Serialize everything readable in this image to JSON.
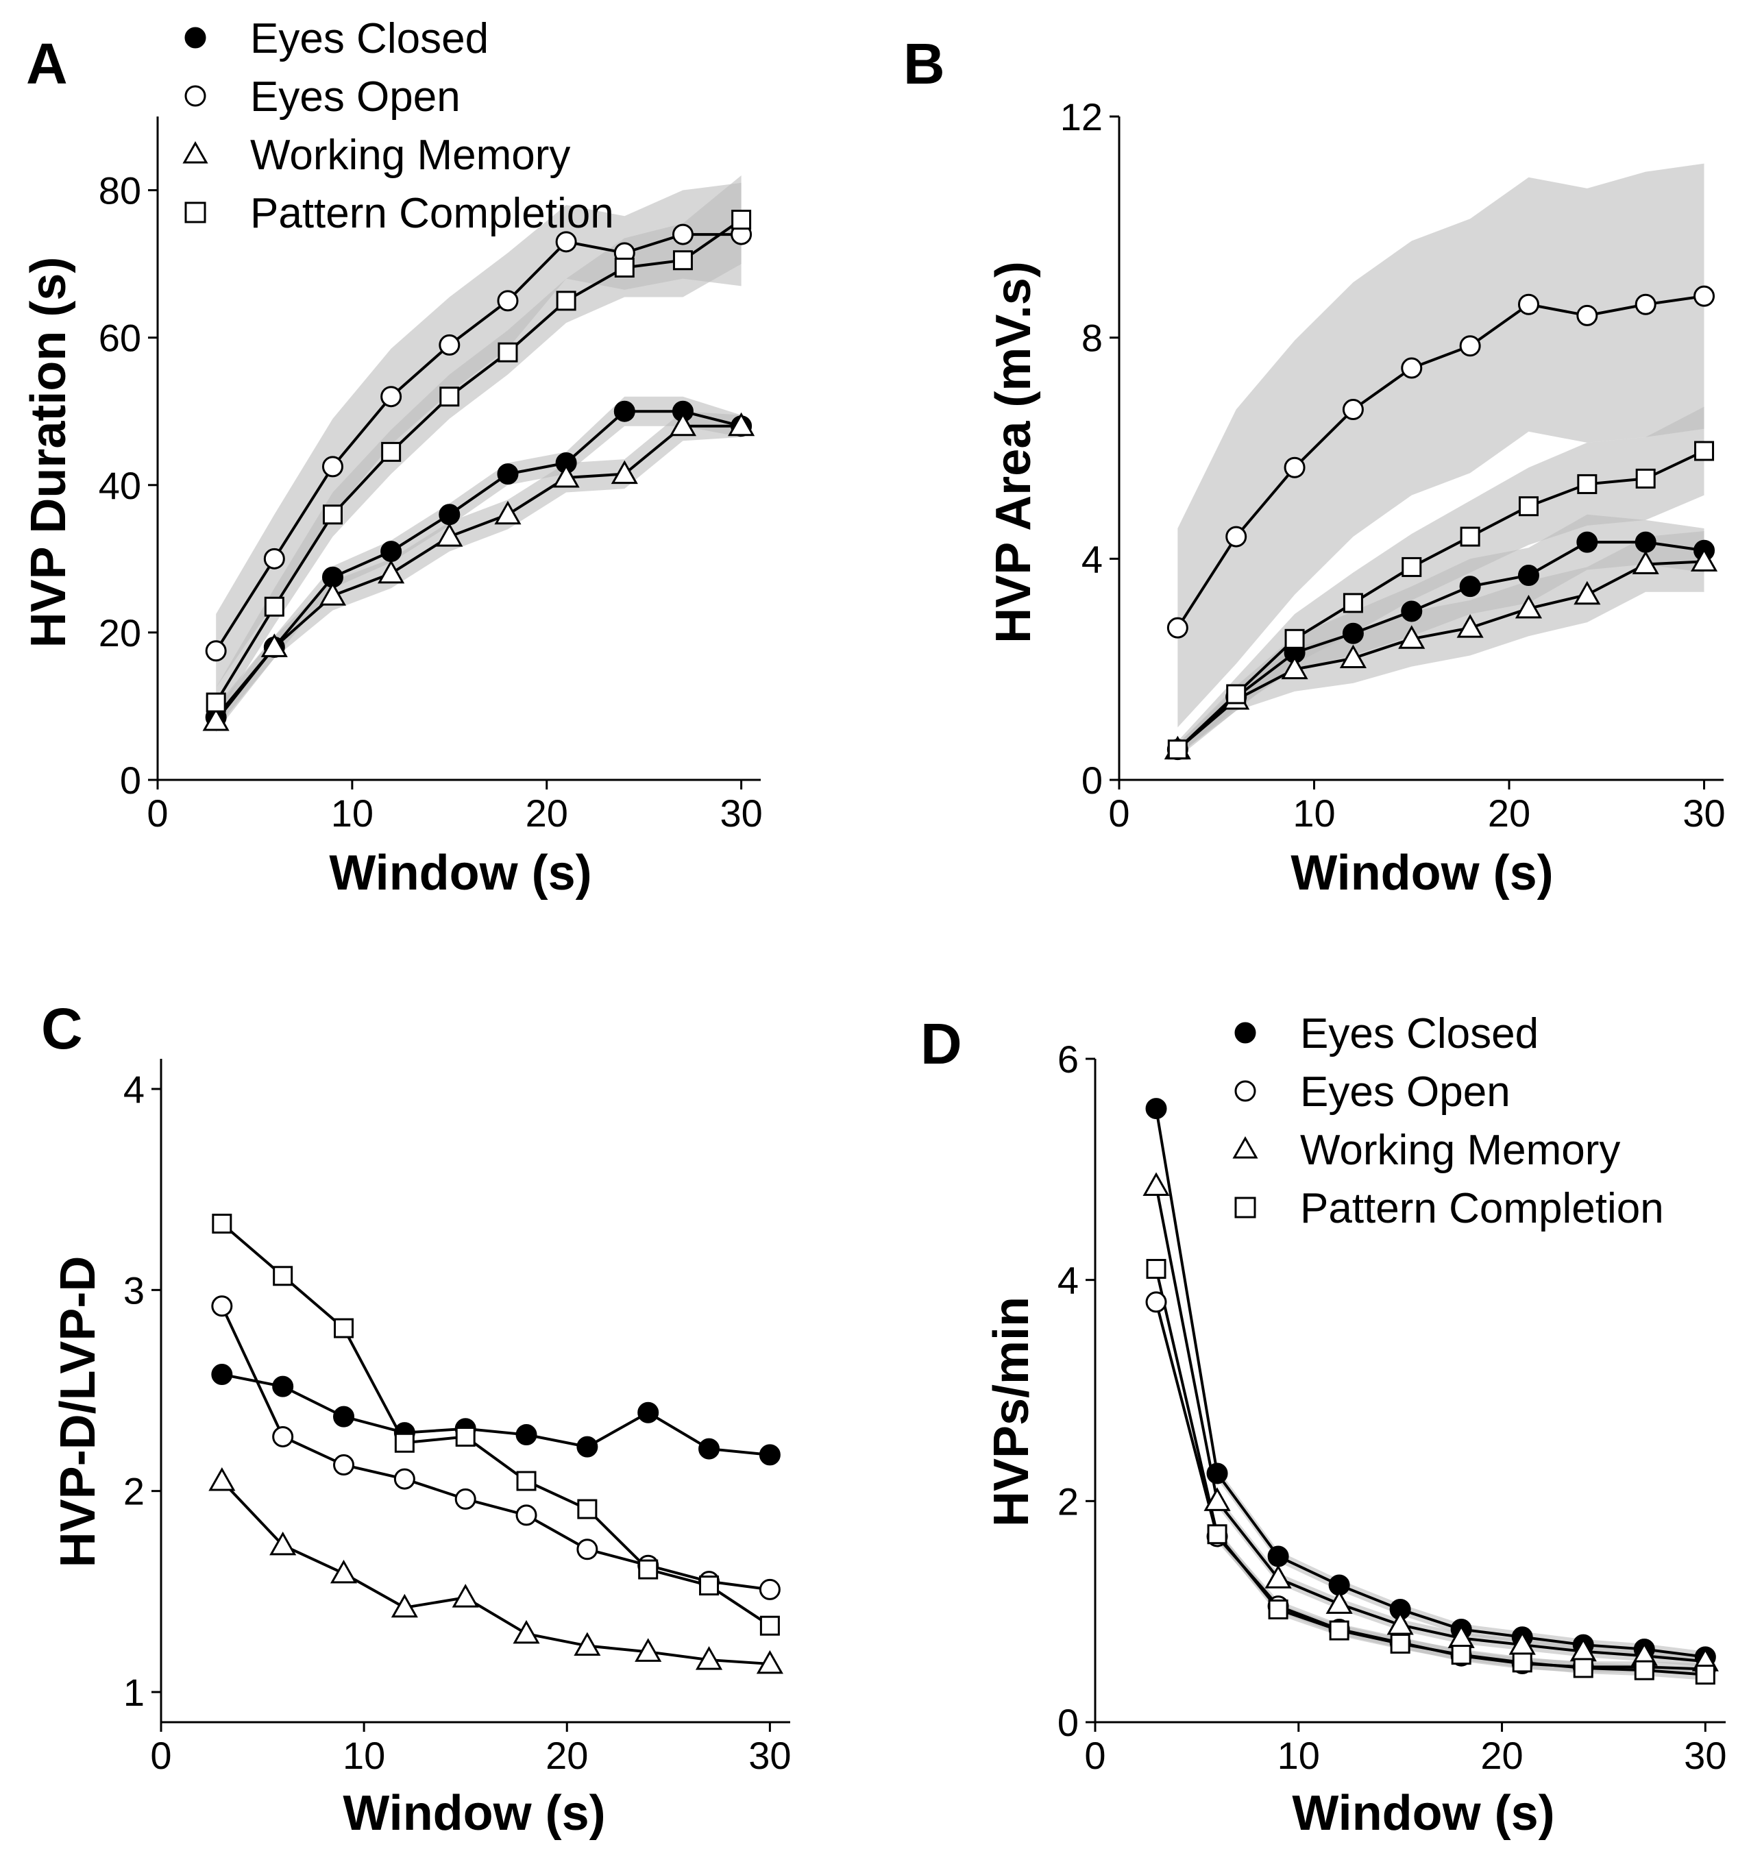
{
  "legend": [
    "Eyes Closed",
    "Eyes Open",
    "Working Memory",
    "Pattern Completion"
  ],
  "chart_data": [
    {
      "panel": "A",
      "type": "line",
      "xlabel": "Window (s)",
      "ylabel": "HVP Duration (s)",
      "xlim": [
        0,
        31
      ],
      "ylim": [
        0,
        90
      ],
      "xticks": [
        "0",
        "10",
        "20",
        "30"
      ],
      "yticks": [
        "0",
        "20",
        "40",
        "60",
        "80"
      ],
      "legend": "top-left",
      "x": [
        3,
        6,
        9,
        12,
        15,
        18,
        21,
        24,
        27,
        30
      ],
      "series": [
        {
          "name": "Eyes Closed",
          "marker": "filled-circle",
          "values": [
            8.5,
            18,
            27.5,
            31,
            36,
            41.5,
            43,
            50,
            50,
            48
          ],
          "band": [
            1.5,
            1.5,
            1.5,
            1.5,
            1.5,
            1.5,
            1.5,
            2,
            2,
            1.5
          ]
        },
        {
          "name": "Eyes Open",
          "marker": "open-circle",
          "values": [
            17.5,
            30,
            42.5,
            52,
            59,
            65,
            73,
            71.5,
            74,
            74
          ],
          "band": [
            5,
            6,
            6.5,
            6.5,
            6.5,
            6.5,
            5,
            5,
            6,
            7
          ]
        },
        {
          "name": "Working Memory",
          "marker": "open-triangle",
          "values": [
            8,
            18,
            25,
            28,
            33,
            36,
            41,
            41.5,
            48,
            48
          ],
          "band": [
            1.5,
            1.5,
            2,
            2,
            2,
            2,
            2,
            2,
            2,
            1.5
          ]
        },
        {
          "name": "Pattern Completion",
          "marker": "open-square",
          "values": [
            10.5,
            23.5,
            36,
            44.5,
            52,
            58,
            65,
            69.5,
            70.5,
            76
          ],
          "band": [
            2,
            2.5,
            3,
            3,
            3,
            3,
            3,
            4,
            5,
            6
          ]
        }
      ]
    },
    {
      "panel": "B",
      "type": "line",
      "xlabel": "Window (s)",
      "ylabel": "HVP Area (mV.s)",
      "xlim": [
        0,
        31
      ],
      "ylim": [
        0,
        12
      ],
      "xticks": [
        "0",
        "10",
        "20",
        "30"
      ],
      "yticks": [
        "0",
        "4",
        "8",
        "12"
      ],
      "x": [
        3,
        6,
        9,
        12,
        15,
        18,
        21,
        24,
        27,
        30
      ],
      "series": [
        {
          "name": "Eyes Closed",
          "marker": "filled-circle",
          "values": [
            0.55,
            1.5,
            2.3,
            2.65,
            3.05,
            3.5,
            3.7,
            4.3,
            4.3,
            4.15
          ],
          "band": [
            0.1,
            0.2,
            0.3,
            0.4,
            0.45,
            0.5,
            0.5,
            0.5,
            0.4,
            0.4
          ]
        },
        {
          "name": "Eyes Open",
          "marker": "open-circle",
          "values": [
            2.75,
            4.4,
            5.65,
            6.7,
            7.45,
            7.85,
            8.6,
            8.4,
            8.6,
            8.75
          ],
          "band": [
            1.8,
            2.3,
            2.3,
            2.3,
            2.3,
            2.3,
            2.3,
            2.3,
            2.4,
            2.4
          ]
        },
        {
          "name": "Working Memory",
          "marker": "open-triangle",
          "values": [
            0.55,
            1.45,
            2.0,
            2.2,
            2.55,
            2.75,
            3.1,
            3.35,
            3.9,
            3.95
          ],
          "band": [
            0.1,
            0.2,
            0.4,
            0.45,
            0.5,
            0.5,
            0.5,
            0.5,
            0.5,
            0.55
          ]
        },
        {
          "name": "Pattern Completion",
          "marker": "open-square",
          "values": [
            0.55,
            1.55,
            2.55,
            3.2,
            3.85,
            4.4,
            4.95,
            5.35,
            5.45,
            5.95
          ],
          "band": [
            0.15,
            0.3,
            0.45,
            0.55,
            0.6,
            0.65,
            0.7,
            0.75,
            0.75,
            0.8
          ]
        }
      ]
    },
    {
      "panel": "C",
      "type": "line",
      "xlabel": "Window (s)",
      "ylabel": "HVP-D/LVP-D",
      "xlim": [
        0,
        31
      ],
      "ylim": [
        0.85,
        4.15
      ],
      "xticks": [
        "0",
        "10",
        "20",
        "30"
      ],
      "yticks": [
        "1",
        "2",
        "3",
        "4"
      ],
      "x": [
        3,
        6,
        9,
        12,
        15,
        18,
        21,
        24,
        27,
        30
      ],
      "series": [
        {
          "name": "Eyes Closed",
          "marker": "filled-circle",
          "values": [
            2.58,
            2.52,
            2.37,
            2.29,
            2.31,
            2.28,
            2.22,
            2.39,
            2.21,
            2.18
          ]
        },
        {
          "name": "Eyes Open",
          "marker": "open-circle",
          "values": [
            2.92,
            2.27,
            2.13,
            2.06,
            1.96,
            1.88,
            1.71,
            1.63,
            1.55,
            1.51
          ]
        },
        {
          "name": "Working Memory",
          "marker": "open-triangle",
          "values": [
            2.05,
            1.73,
            1.59,
            1.42,
            1.47,
            1.29,
            1.23,
            1.2,
            1.16,
            1.14
          ]
        },
        {
          "name": "Pattern Completion",
          "marker": "open-square",
          "values": [
            3.33,
            3.07,
            2.81,
            2.24,
            2.27,
            2.05,
            1.91,
            1.61,
            1.53,
            1.33
          ]
        }
      ]
    },
    {
      "panel": "D",
      "type": "line",
      "xlabel": "Window (s)",
      "ylabel": "HVPs/min",
      "xlim": [
        0,
        31
      ],
      "ylim": [
        0,
        6
      ],
      "xticks": [
        "0",
        "10",
        "20",
        "30"
      ],
      "yticks": [
        "0",
        "2",
        "4",
        "6"
      ],
      "legend": "top-right",
      "x": [
        3,
        6,
        9,
        12,
        15,
        18,
        21,
        24,
        27,
        30
      ],
      "series": [
        {
          "name": "Eyes Closed",
          "marker": "filled-circle",
          "values": [
            5.55,
            2.25,
            1.5,
            1.24,
            1.02,
            0.84,
            0.77,
            0.7,
            0.66,
            0.59
          ],
          "band": [
            0.05,
            0.05,
            0.05,
            0.05,
            0.05,
            0.05,
            0.05,
            0.05,
            0.05,
            0.05
          ]
        },
        {
          "name": "Eyes Open",
          "marker": "open-circle",
          "values": [
            3.8,
            1.68,
            1.05,
            0.84,
            0.72,
            0.6,
            0.53,
            0.5,
            0.5,
            0.48
          ],
          "band": [
            0.05,
            0.05,
            0.05,
            0.05,
            0.05,
            0.05,
            0.05,
            0.05,
            0.05,
            0.05
          ]
        },
        {
          "name": "Working Memory",
          "marker": "open-triangle",
          "values": [
            4.85,
            2.0,
            1.3,
            1.07,
            0.88,
            0.76,
            0.7,
            0.64,
            0.6,
            0.55
          ],
          "band": [
            0.05,
            0.05,
            0.05,
            0.05,
            0.05,
            0.05,
            0.05,
            0.05,
            0.05,
            0.05
          ]
        },
        {
          "name": "Pattern Completion",
          "marker": "open-square",
          "values": [
            4.1,
            1.7,
            1.02,
            0.83,
            0.71,
            0.61,
            0.54,
            0.49,
            0.47,
            0.43
          ],
          "band": [
            0.05,
            0.05,
            0.05,
            0.05,
            0.05,
            0.05,
            0.05,
            0.05,
            0.05,
            0.05
          ]
        }
      ]
    }
  ]
}
